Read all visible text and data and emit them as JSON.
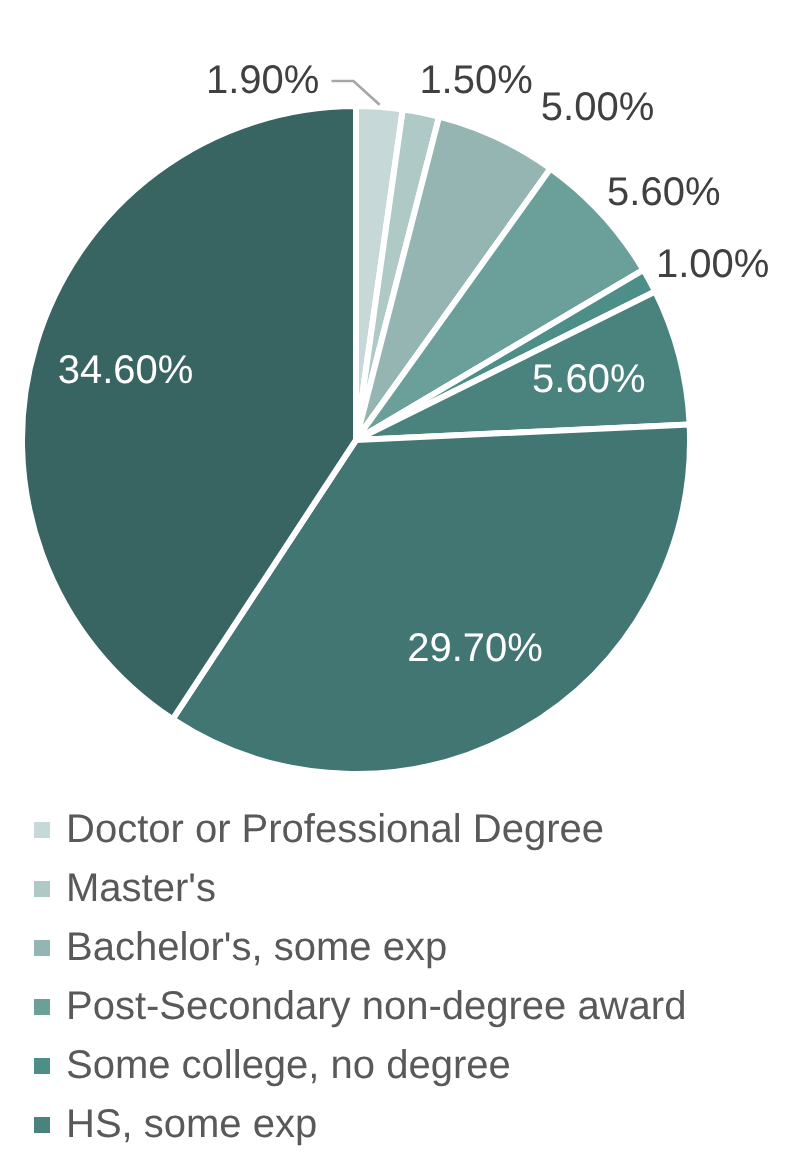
{
  "chart_data": {
    "type": "pie",
    "categories": [
      "Doctor or Professional Degree",
      "Master's",
      "Bachelor's, some exp",
      "Post-Secondary non-degree award",
      "Some college, no degree",
      "HS, some exp",
      null,
      null
    ],
    "values": [
      1.9,
      1.5,
      5.0,
      5.6,
      1.0,
      5.6,
      29.7,
      34.6
    ],
    "colors": [
      "#c6d8d7",
      "#afc9c7",
      "#94b5b1",
      "#6a9f9a",
      "#4d8e88",
      "#4a827d",
      "#427673",
      "#386562"
    ],
    "value_labels": [
      "1.90%",
      "1.50%",
      "5.00%",
      "5.60%",
      "1.00%",
      "5.60%",
      "29.70%",
      "34.60%"
    ],
    "legend": "bottom"
  }
}
